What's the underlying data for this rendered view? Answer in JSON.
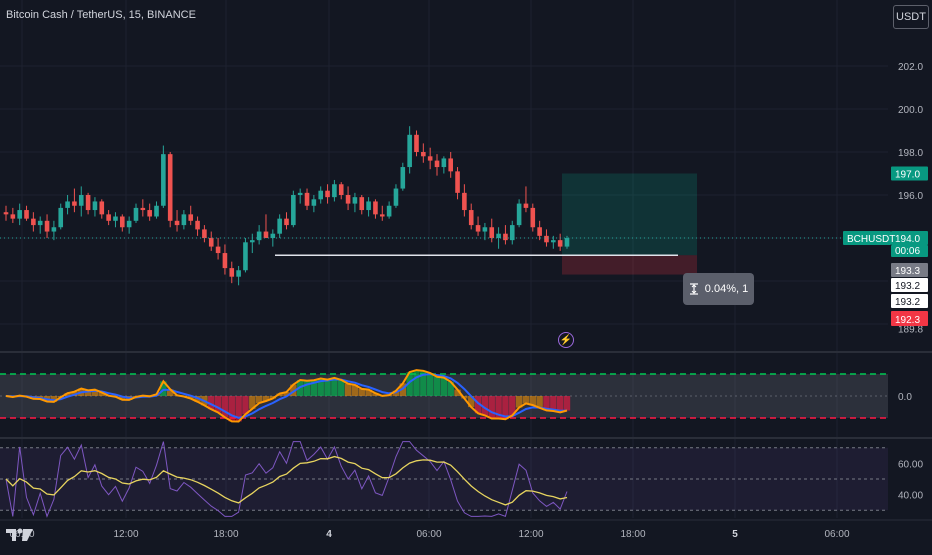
{
  "header": {
    "title": "Bitcoin Cash / TetherUS, 15, BINANCE",
    "currency": "USDT"
  },
  "colors": {
    "background": "#131722",
    "up": "#26a69a",
    "down": "#ef5350",
    "grid": "#1e2230",
    "axis_text": "#b2b5be",
    "osc_orange": "#ff9800",
    "osc_blue": "#2962ff",
    "rsi_line": "#7e57c2",
    "rsi_ma": "#e7d45f"
  },
  "icons": {
    "measure": "ruler-vertical-icon",
    "lightning": "lightning-icon",
    "logo": "tradingview-logo-icon"
  },
  "chart_data": [
    {
      "type": "candlestick",
      "title": "Bitcoin Cash / TetherUS, 15, BINANCE",
      "symbol": "BCHUSDT",
      "price_axis_ticks": [
        "202.0",
        "200.0",
        "198.0",
        "196.0",
        "194.0",
        "189.8"
      ],
      "ylim": [
        189.6,
        202.3
      ],
      "time_axis_ticks": [
        "06:00",
        "12:00",
        "18:00",
        "4",
        "06:00",
        "12:00",
        "18:00",
        "5",
        "06:00"
      ],
      "last_price": "194.0",
      "countdown": "00:06",
      "price_labels": [
        "197.0",
        "193.3",
        "193.2",
        "193.2",
        "192.3"
      ],
      "long_position": {
        "entry": 193.2,
        "target": 197.0,
        "stop": 192.3
      },
      "measure_label": "0.04%, 1",
      "candles": [
        [
          195.2,
          195.5,
          194.8,
          195.1
        ],
        [
          195.1,
          195.4,
          194.7,
          194.9
        ],
        [
          194.9,
          195.6,
          194.6,
          195.3
        ],
        [
          195.3,
          195.5,
          194.8,
          194.9
        ],
        [
          194.9,
          195.2,
          194.3,
          194.6
        ],
        [
          194.6,
          195.0,
          194.2,
          194.8
        ],
        [
          194.8,
          195.1,
          194.0,
          194.3
        ],
        [
          194.3,
          194.8,
          193.9,
          194.5
        ],
        [
          194.5,
          195.6,
          194.4,
          195.4
        ],
        [
          195.4,
          196.0,
          195.1,
          195.7
        ],
        [
          195.7,
          196.3,
          195.2,
          195.5
        ],
        [
          195.5,
          196.4,
          195.0,
          196.0
        ],
        [
          196.0,
          196.1,
          195.1,
          195.3
        ],
        [
          195.3,
          195.9,
          195.0,
          195.7
        ],
        [
          195.7,
          195.8,
          194.9,
          195.1
        ],
        [
          195.1,
          195.3,
          194.6,
          194.8
        ],
        [
          194.8,
          195.2,
          194.5,
          195.0
        ],
        [
          195.0,
          195.1,
          194.3,
          194.5
        ],
        [
          194.5,
          195.0,
          194.2,
          194.8
        ],
        [
          194.8,
          195.6,
          194.7,
          195.4
        ],
        [
          195.4,
          195.8,
          195.0,
          195.3
        ],
        [
          195.3,
          195.6,
          194.8,
          195.0
        ],
        [
          195.0,
          195.7,
          194.9,
          195.5
        ],
        [
          195.5,
          198.3,
          195.4,
          197.9
        ],
        [
          197.9,
          198.0,
          194.5,
          194.8
        ],
        [
          194.8,
          195.3,
          194.3,
          194.6
        ],
        [
          194.6,
          195.3,
          194.4,
          195.1
        ],
        [
          195.1,
          195.5,
          194.6,
          194.8
        ],
        [
          194.8,
          195.0,
          194.1,
          194.4
        ],
        [
          194.4,
          194.6,
          193.8,
          194.0
        ],
        [
          194.0,
          194.3,
          193.4,
          193.6
        ],
        [
          193.6,
          194.0,
          193.0,
          193.3
        ],
        [
          193.3,
          193.7,
          192.3,
          192.6
        ],
        [
          192.6,
          192.9,
          191.9,
          192.2
        ],
        [
          192.2,
          192.7,
          191.8,
          192.5
        ],
        [
          192.5,
          194.0,
          192.4,
          193.8
        ],
        [
          193.8,
          194.2,
          193.3,
          193.9
        ],
        [
          193.9,
          194.6,
          193.7,
          194.3
        ],
        [
          194.3,
          195.1,
          194.1,
          194.0
        ],
        [
          194.0,
          194.4,
          193.6,
          194.2
        ],
        [
          194.2,
          195.1,
          194.0,
          194.9
        ],
        [
          194.9,
          195.2,
          194.4,
          194.6
        ],
        [
          194.6,
          196.2,
          194.5,
          196.0
        ],
        [
          196.0,
          196.3,
          195.6,
          196.1
        ],
        [
          196.1,
          196.3,
          195.3,
          195.5
        ],
        [
          195.5,
          196.0,
          195.2,
          195.8
        ],
        [
          195.8,
          196.4,
          195.6,
          196.2
        ],
        [
          196.2,
          196.5,
          195.6,
          195.9
        ],
        [
          195.9,
          196.7,
          195.7,
          196.5
        ],
        [
          196.5,
          196.6,
          195.8,
          196.0
        ],
        [
          196.0,
          196.4,
          195.3,
          195.6
        ],
        [
          195.6,
          196.1,
          195.2,
          195.9
        ],
        [
          195.9,
          196.0,
          195.1,
          195.3
        ],
        [
          195.3,
          195.9,
          195.0,
          195.7
        ],
        [
          195.7,
          195.8,
          194.9,
          195.1
        ],
        [
          195.1,
          195.5,
          194.8,
          195.0
        ],
        [
          195.0,
          195.7,
          194.9,
          195.5
        ],
        [
          195.5,
          196.5,
          195.4,
          196.3
        ],
        [
          196.3,
          197.5,
          196.2,
          197.3
        ],
        [
          197.3,
          199.2,
          197.0,
          198.8
        ],
        [
          198.8,
          199.0,
          197.8,
          198.0
        ],
        [
          198.0,
          198.4,
          197.5,
          197.8
        ],
        [
          197.8,
          198.2,
          197.2,
          197.6
        ],
        [
          197.6,
          197.9,
          196.9,
          197.3
        ],
        [
          197.3,
          197.8,
          197.0,
          197.7
        ],
        [
          197.7,
          198.0,
          196.8,
          197.1
        ],
        [
          197.1,
          197.3,
          195.8,
          196.1
        ],
        [
          196.1,
          196.5,
          195.0,
          195.3
        ],
        [
          195.3,
          195.6,
          194.4,
          194.6
        ],
        [
          194.6,
          195.0,
          194.1,
          194.3
        ],
        [
          194.3,
          194.7,
          193.9,
          194.5
        ],
        [
          194.5,
          194.9,
          193.8,
          194.0
        ],
        [
          194.0,
          194.5,
          193.5,
          194.2
        ],
        [
          194.2,
          194.6,
          193.7,
          193.9
        ],
        [
          193.9,
          194.8,
          193.7,
          194.6
        ],
        [
          194.6,
          195.8,
          194.5,
          195.6
        ],
        [
          195.6,
          196.4,
          195.2,
          195.4
        ],
        [
          195.4,
          195.6,
          194.3,
          194.5
        ],
        [
          194.5,
          194.8,
          193.9,
          194.1
        ],
        [
          194.1,
          194.4,
          193.6,
          193.8
        ],
        [
          193.8,
          194.1,
          193.5,
          193.9
        ],
        [
          193.9,
          194.2,
          193.4,
          193.6
        ],
        [
          193.6,
          194.1,
          193.5,
          194.0
        ]
      ]
    },
    {
      "type": "line",
      "name_hidden": true,
      "y_ticks": [
        "0.0"
      ],
      "ylim": [
        -1.2,
        1.2
      ],
      "upper_level": 0.85,
      "lower_level": -0.85
    },
    {
      "type": "line",
      "y_ticks": [
        "60.00",
        "40.00"
      ],
      "ylim": [
        25,
        75
      ],
      "levels": [
        70,
        50,
        30
      ]
    }
  ]
}
